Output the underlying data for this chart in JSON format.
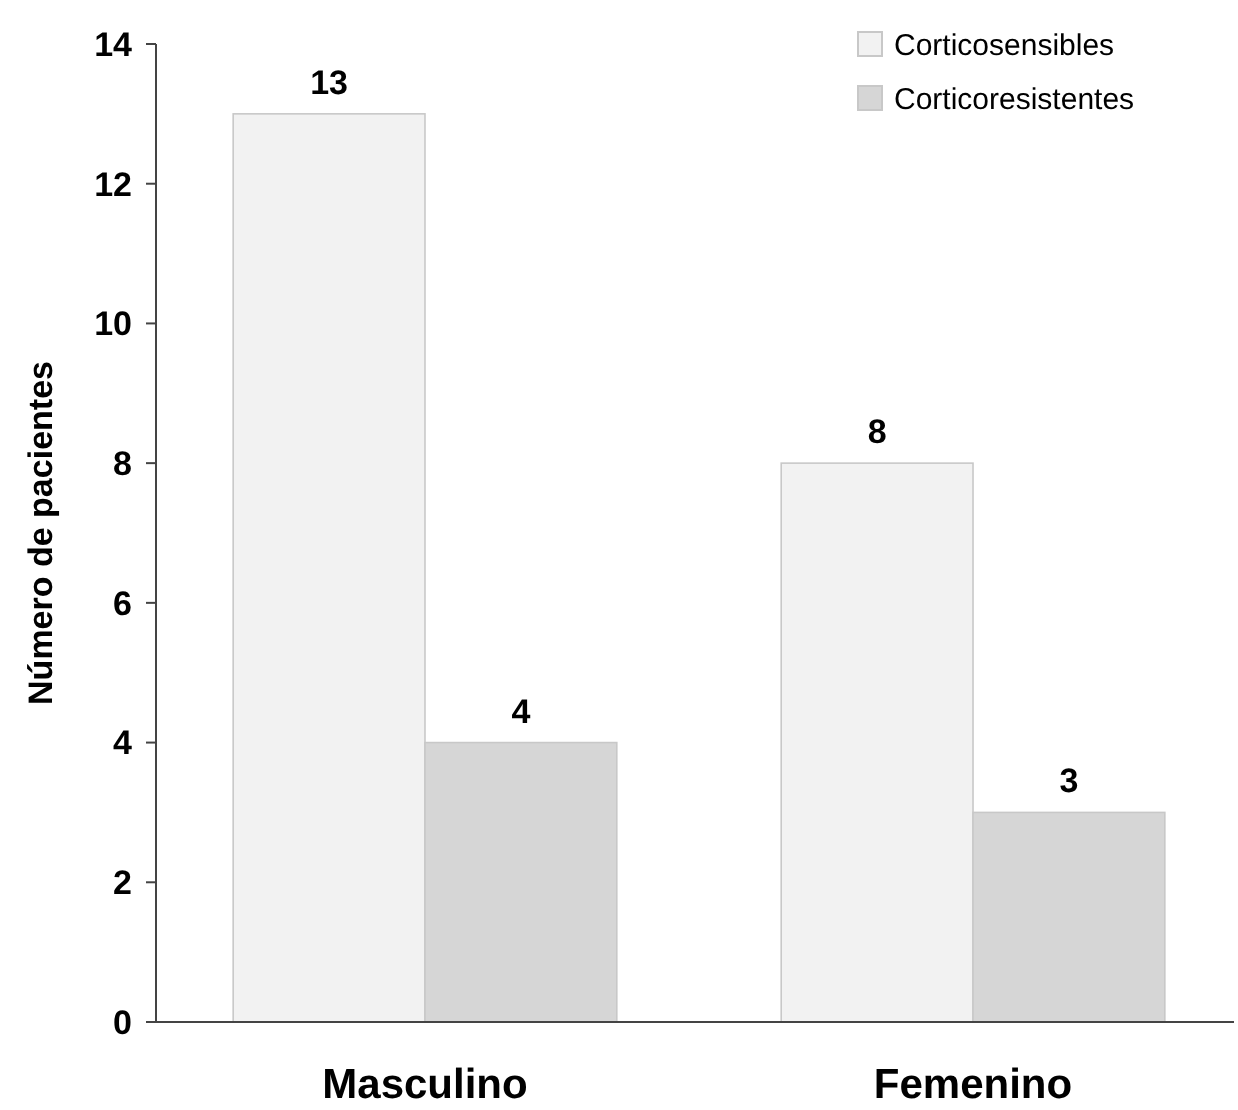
{
  "chart_data": {
    "type": "bar",
    "categories": [
      "Masculino",
      "Femenino"
    ],
    "series": [
      {
        "name": "Corticosensibles",
        "color": "#f2f2f2",
        "values": [
          13,
          8
        ]
      },
      {
        "name": "Corticoresistentes",
        "color": "#d6d6d6",
        "values": [
          4,
          3
        ]
      }
    ],
    "ylabel": "Número de pacientes",
    "ylim": [
      0,
      14
    ],
    "yticks": [
      0,
      2,
      4,
      6,
      8,
      10,
      12,
      14
    ],
    "data_labels": true,
    "legend": "top right",
    "grid": false
  }
}
